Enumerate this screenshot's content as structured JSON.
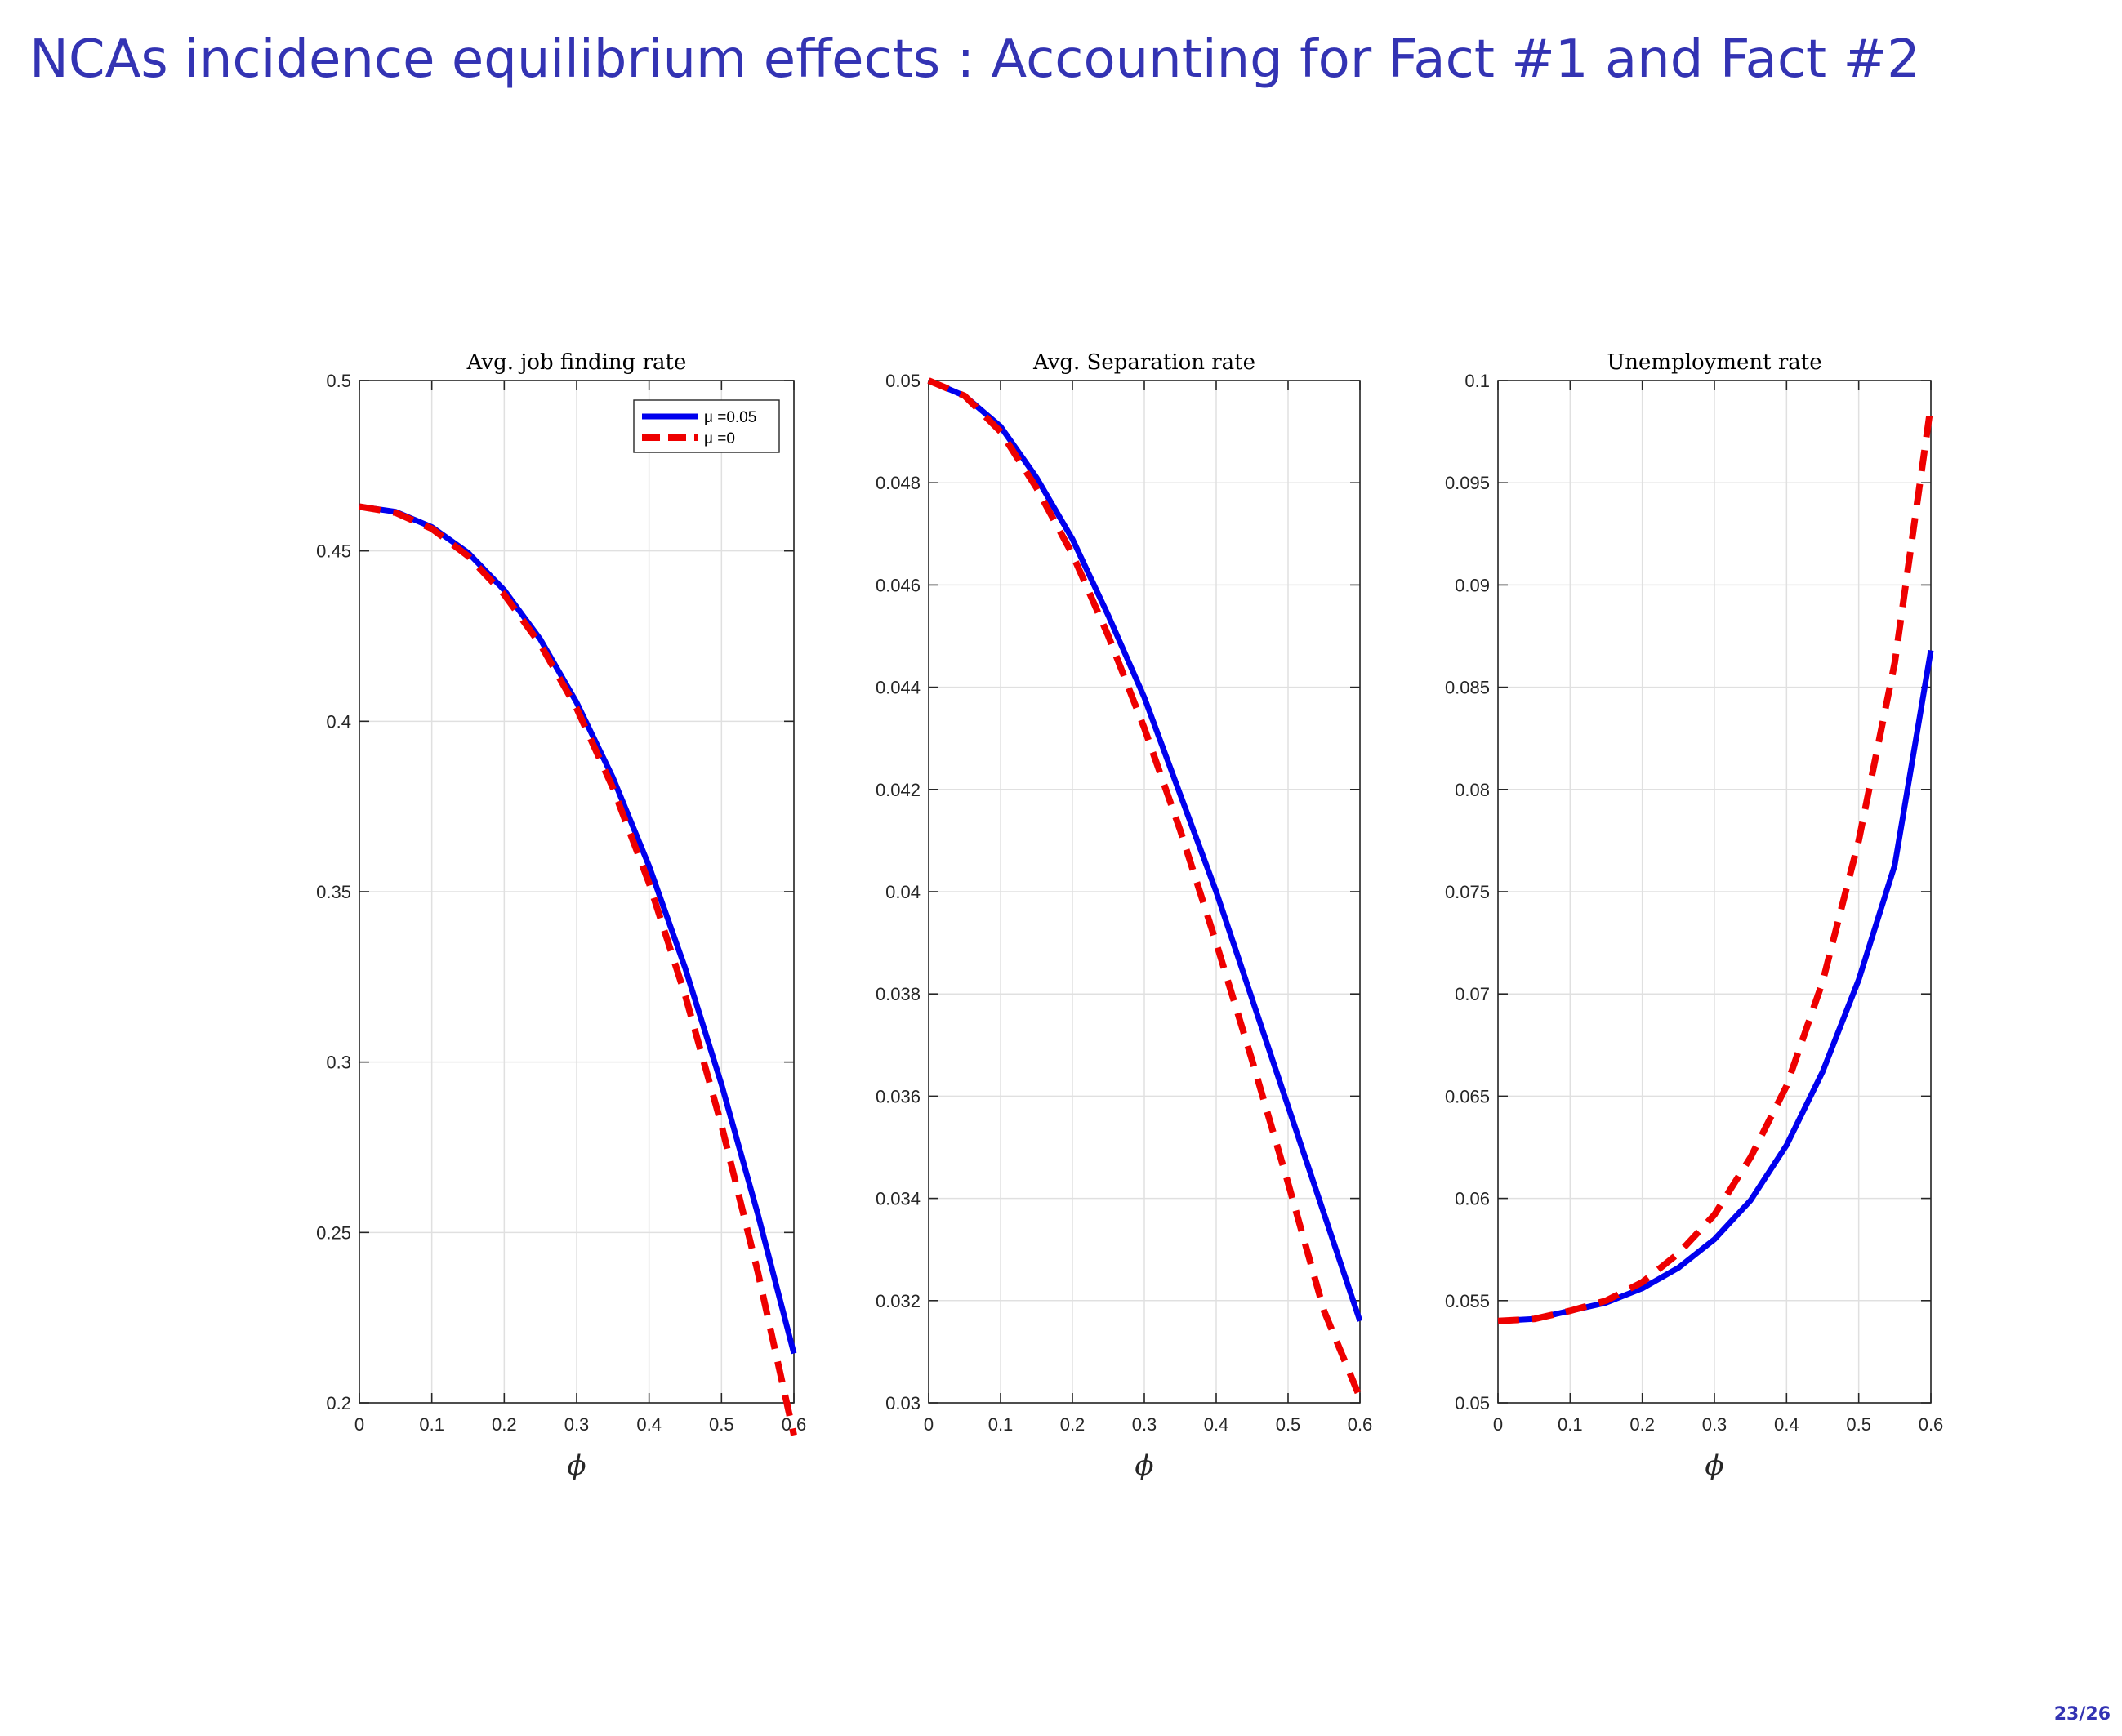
{
  "slide": {
    "title": "NCAs incidence equilibrium effects : Accounting for Fact #1 and Fact #2",
    "page_number": "23/26"
  },
  "colors": {
    "title": "#3333b3",
    "series_mu005": "#0000ee",
    "series_mu0": "#ee0000",
    "grid": "#e0e0e0",
    "axis": "#262626"
  },
  "chart_data": [
    {
      "type": "line",
      "title": "Avg. job finding rate",
      "xlabel": "ϕ",
      "ylabel": "",
      "xlim": [
        0,
        0.6
      ],
      "ylim": [
        0.2,
        0.5
      ],
      "xticks": [
        "0",
        "0.1",
        "0.2",
        "0.3",
        "0.4",
        "0.5",
        "0.6"
      ],
      "yticks": [
        "0.2",
        "0.25",
        "0.3",
        "0.35",
        "0.4",
        "0.45",
        "0.5"
      ],
      "grid": true,
      "legend": "top-right",
      "x": [
        0,
        0.05,
        0.1,
        0.15,
        0.2,
        0.25,
        0.3,
        0.35,
        0.4,
        0.45,
        0.5,
        0.55,
        0.6
      ],
      "series": [
        {
          "name": "μ =0.05",
          "style": "solid",
          "color": "#0000ee",
          "values": [
            0.463,
            0.4615,
            0.457,
            0.4495,
            0.4385,
            0.424,
            0.4055,
            0.3835,
            0.3575,
            0.3275,
            0.2935,
            0.2555,
            0.2145
          ]
        },
        {
          "name": "μ =0",
          "style": "dashed",
          "color": "#ee0000",
          "values": [
            0.463,
            0.4612,
            0.4565,
            0.4485,
            0.4372,
            0.4225,
            0.4038,
            0.3805,
            0.3525,
            0.3195,
            0.2815,
            0.2385,
            0.1905
          ]
        }
      ]
    },
    {
      "type": "line",
      "title": "Avg. Separation rate",
      "xlabel": "ϕ",
      "ylabel": "",
      "xlim": [
        0,
        0.6
      ],
      "ylim": [
        0.03,
        0.05
      ],
      "xticks": [
        "0",
        "0.1",
        "0.2",
        "0.3",
        "0.4",
        "0.5",
        "0.6"
      ],
      "yticks": [
        "0.03",
        "0.032",
        "0.034",
        "0.036",
        "0.038",
        "0.04",
        "0.042",
        "0.044",
        "0.046",
        "0.048",
        "0.05"
      ],
      "grid": true,
      "legend": "",
      "x": [
        0,
        0.05,
        0.1,
        0.15,
        0.2,
        0.25,
        0.3,
        0.35,
        0.4,
        0.45,
        0.5,
        0.55,
        0.6
      ],
      "series": [
        {
          "name": "μ =0.05",
          "style": "solid",
          "color": "#0000ee",
          "values": [
            0.05,
            0.0497,
            0.0491,
            0.0481,
            0.0469,
            0.0454,
            0.0438,
            0.0419,
            0.04,
            0.0379,
            0.0358,
            0.0337,
            0.0316
          ]
        },
        {
          "name": "μ =0",
          "style": "dashed",
          "color": "#ee0000",
          "values": [
            0.05,
            0.0497,
            0.049,
            0.0479,
            0.0466,
            0.045,
            0.0432,
            0.0412,
            0.039,
            0.0367,
            0.0343,
            0.0318,
            0.0301
          ]
        }
      ]
    },
    {
      "type": "line",
      "title": "Unemployment rate",
      "xlabel": "ϕ",
      "ylabel": "",
      "xlim": [
        0,
        0.6
      ],
      "ylim": [
        0.05,
        0.1
      ],
      "xticks": [
        "0",
        "0.1",
        "0.2",
        "0.3",
        "0.4",
        "0.5",
        "0.6"
      ],
      "yticks": [
        "0.05",
        "0.055",
        "0.06",
        "0.065",
        "0.07",
        "0.075",
        "0.08",
        "0.085",
        "0.09",
        "0.095",
        "0.1"
      ],
      "grid": true,
      "legend": "",
      "x": [
        0,
        0.05,
        0.1,
        0.15,
        0.2,
        0.25,
        0.3,
        0.35,
        0.4,
        0.45,
        0.5,
        0.55,
        0.6
      ],
      "series": [
        {
          "name": "μ =0.05",
          "style": "solid",
          "color": "#0000ee",
          "values": [
            0.054,
            0.0541,
            0.0545,
            0.0549,
            0.0556,
            0.0566,
            0.058,
            0.0599,
            0.0626,
            0.0662,
            0.0707,
            0.0763,
            0.0868
          ]
        },
        {
          "name": "μ =0",
          "style": "dashed",
          "color": "#ee0000",
          "values": [
            0.054,
            0.0541,
            0.0545,
            0.055,
            0.0559,
            0.0573,
            0.0592,
            0.062,
            0.0655,
            0.0706,
            0.0775,
            0.0862,
            0.0988
          ]
        }
      ]
    }
  ]
}
